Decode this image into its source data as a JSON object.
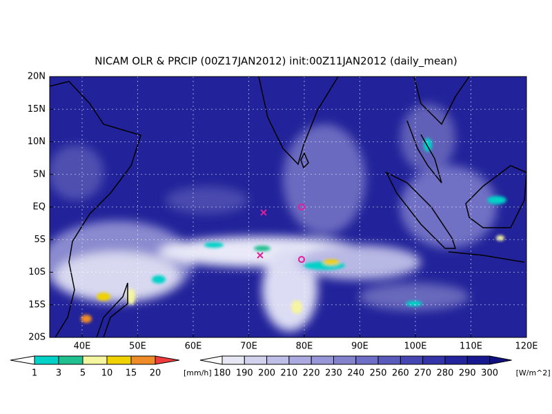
{
  "title": "NICAM OLR & PRCIP (00Z17JAN2012) init:00Z11JAN2012 (daily_mean)",
  "lat_labels": [
    "20N",
    "15N",
    "10N",
    "5N",
    "EQ",
    "5S",
    "10S",
    "15S",
    "20S"
  ],
  "lon_labels": [
    "40E",
    "50E",
    "60E",
    "70E",
    "80E",
    "90E",
    "100E",
    "110E",
    "120E"
  ],
  "precip_colorbar": {
    "labels": [
      1,
      3,
      5,
      10,
      15,
      20
    ],
    "unit": "[mm/h]",
    "colors": [
      "#ffffff",
      "#00d2c8",
      "#20c090",
      "#f5f5a0",
      "#f0d200",
      "#f08c28",
      "#f03c3c"
    ]
  },
  "olr_colorbar": {
    "labels": [
      180,
      190,
      200,
      210,
      220,
      230,
      240,
      250,
      260,
      270,
      280,
      290,
      300
    ],
    "unit": "[W/m^2]",
    "colors": [
      "#ffffff",
      "#e6e6f5",
      "#d2d2ef",
      "#bebee8",
      "#aaaae1",
      "#9696d8",
      "#8282cf",
      "#6e6ec6",
      "#5a5abc",
      "#4646b2",
      "#3434a8",
      "#24249c",
      "#181890",
      "#101080"
    ]
  }
}
